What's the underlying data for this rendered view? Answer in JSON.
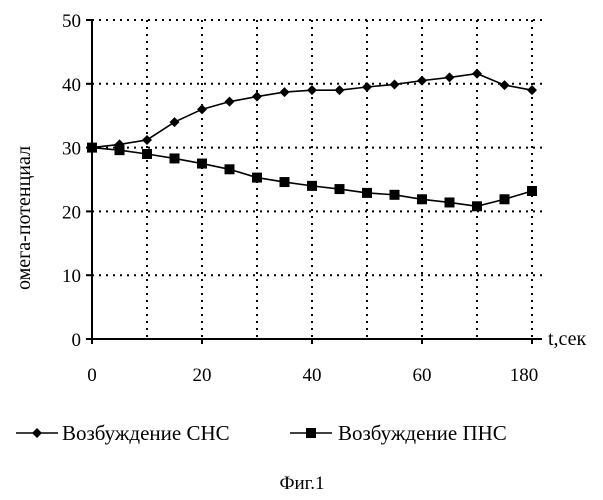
{
  "chart_data": {
    "type": "line",
    "title": "",
    "xlabel": "t,сек",
    "ylabel": "омега-потенциал",
    "xlim": [
      0,
      180
    ],
    "ylim": [
      0,
      50
    ],
    "x_ticks": [
      "0",
      "20",
      "40",
      "60",
      "180"
    ],
    "y_ticks": [
      "0",
      "10",
      "20",
      "30",
      "40",
      "50"
    ],
    "grid": true,
    "legend_position": "bottom",
    "series": [
      {
        "name": "Возбуждение СНС",
        "marker": "diamond",
        "x": [
          0,
          5,
          10,
          15,
          20,
          25,
          30,
          35,
          40,
          45,
          50,
          55,
          60,
          65,
          70,
          75,
          80
        ],
        "y": [
          30,
          30.5,
          31.2,
          34,
          36,
          37.2,
          38,
          38.7,
          39,
          39,
          39.5,
          39.9,
          40.5,
          41,
          41.6,
          39.8,
          39
        ]
      },
      {
        "name": "Возбуждение ПНС",
        "marker": "square",
        "x": [
          0,
          5,
          10,
          15,
          20,
          25,
          30,
          35,
          40,
          45,
          50,
          55,
          60,
          65,
          70,
          75,
          80
        ],
        "y": [
          30,
          29.6,
          29,
          28.3,
          27.5,
          26.6,
          25.3,
          24.6,
          24,
          23.5,
          22.9,
          22.6,
          21.9,
          21.4,
          20.8,
          21.9,
          23.2
        ]
      }
    ]
  },
  "caption": "Фиг.1"
}
